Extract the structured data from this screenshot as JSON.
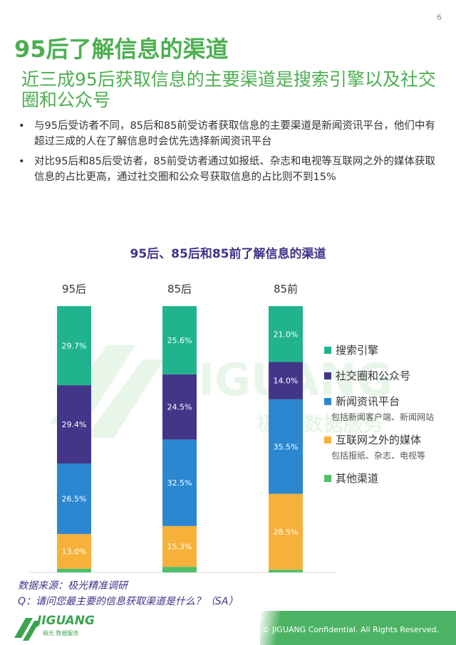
{
  "page_number": "6",
  "title": "95后了解信息的渠道",
  "subtitle": "近三成95后获取信息的主要渠道是搜索引擎以及社交圈和公众号",
  "bullets": [
    "与95后受访者不同，85后和85前受访者获取信息的主要渠道是新闻资讯平台，他们中有超过三成的人在了解信息时会优先选择新闻资讯平台",
    "对比95后和85后受访者，85前受访者通过如报纸、杂志和电视等互联网之外的媒体获取信息的占比更高，通过社交圈和公众号获取信息的占比则不到15%"
  ],
  "bullet_symbol": "•",
  "watermark": {
    "brand": "JIGUANG",
    "tagline": "极光 数据服务"
  },
  "chart_data": {
    "type": "bar",
    "stacked": true,
    "title": "95后、85后和85前了解信息的渠道",
    "categories": [
      "95后",
      "85后",
      "85前"
    ],
    "series": [
      {
        "name": "搜索引擎",
        "values": [
          29.7,
          25.6,
          21.0
        ],
        "color": "#20b38e"
      },
      {
        "name": "社交圈和公众号",
        "values": [
          29.4,
          24.5,
          14.0
        ],
        "color": "#433689"
      },
      {
        "name": "新闻资讯平台",
        "values": [
          26.5,
          32.5,
          35.5
        ],
        "color": "#2b87d0"
      },
      {
        "name": "互联网之外的媒体",
        "values": [
          13.0,
          15.3,
          28.5
        ],
        "color": "#f6b13b"
      },
      {
        "name": "其他渠道",
        "values": [
          1.4,
          2.1,
          1.0
        ],
        "color": "#4fbf6a"
      }
    ],
    "value_labels": [
      [
        "29.7%",
        "25.6%",
        "21.0%"
      ],
      [
        "29.4%",
        "24.5%",
        "14.0%"
      ],
      [
        "26.5%",
        "32.5%",
        "35.5%"
      ],
      [
        "13.0%",
        "15.3%",
        "28.5%"
      ],
      [
        "",
        "",
        ""
      ]
    ],
    "ylim": [
      0,
      100
    ],
    "legend_position": "right"
  },
  "legend": [
    {
      "label": "搜索引擎",
      "note": ""
    },
    {
      "label": "社交圈和公众号",
      "note": ""
    },
    {
      "label": "新闻资讯平台",
      "note": "包括新闻客户端、新闻网站"
    },
    {
      "label": "互联网之外的媒体",
      "note": "包括报纸、杂志、电视等"
    },
    {
      "label": "其他渠道",
      "note": ""
    }
  ],
  "source": "数据来源：极光精准调研",
  "question": "Q：请问您最主要的信息获取渠道是什么？（SA）",
  "footer": {
    "logo_text": "JIGUANG",
    "logo_sub": "极光 数据服务",
    "copyright": "© JIGUANG  Confidential. All Rights Reserved."
  }
}
